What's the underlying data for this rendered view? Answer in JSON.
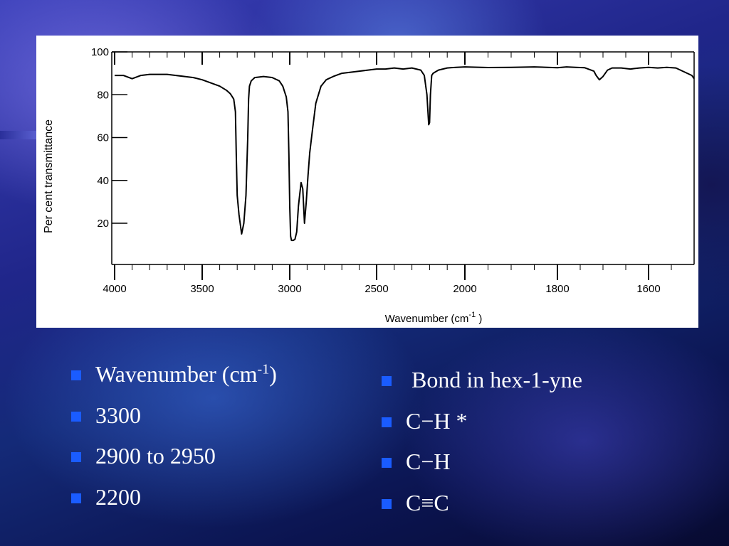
{
  "chart_data": {
    "type": "line",
    "xlabel": "Wavenumber (cm",
    "xlabel_sup": "-1",
    "xlabel_close": " )",
    "ylabel": "Per cent transmittance",
    "x_ticks": [
      4000,
      3500,
      3000,
      2500,
      2000,
      1800,
      1600
    ],
    "x_tick_labels": [
      "4000",
      "3500",
      "3000",
      "2500",
      "2000",
      "1800",
      "1600"
    ],
    "y_ticks": [
      20,
      40,
      60,
      80,
      100
    ],
    "y_tick_labels": [
      "20",
      "40",
      "60",
      "80",
      "100"
    ],
    "ylim": [
      0,
      100
    ],
    "xlim": [
      4000,
      1500
    ],
    "x_scale": "piecewise: 4000-2000 compressed, 2000-1500 expanded",
    "grid": false,
    "series": [
      {
        "x": [
          4000,
          3950,
          3900,
          3850,
          3800,
          3750,
          3700,
          3650,
          3600,
          3550,
          3500,
          3450,
          3400,
          3360,
          3340,
          3320,
          3310,
          3305,
          3300,
          3290,
          3275,
          3262,
          3250,
          3240,
          3235,
          3230,
          3220,
          3200,
          3150,
          3100,
          3060,
          3040,
          3020,
          3010,
          3005,
          3000,
          2995,
          2990,
          2980,
          2970,
          2960,
          2950,
          2935,
          2925,
          2915,
          2905,
          2895,
          2885,
          2870,
          2850,
          2820,
          2790,
          2750,
          2700,
          2650,
          2600,
          2550,
          2500,
          2450,
          2400,
          2350,
          2300,
          2250,
          2230,
          2215,
          2205,
          2200,
          2195,
          2188,
          2180,
          2170,
          2150,
          2100,
          2050,
          2000,
          1950,
          1900,
          1850,
          1800,
          1780,
          1760,
          1740,
          1720,
          1715,
          1708,
          1700,
          1690,
          1680,
          1660,
          1640,
          1620,
          1600,
          1580,
          1560,
          1540,
          1520,
          1505,
          1500
        ],
        "y": [
          89,
          89,
          87.5,
          89,
          89.5,
          89.5,
          89.5,
          89,
          88.5,
          88,
          87,
          85.5,
          84,
          82,
          80.5,
          78,
          72,
          50,
          33,
          24,
          15,
          20,
          33,
          60,
          78,
          84,
          86.5,
          88,
          88.5,
          88,
          86.5,
          84,
          79,
          72,
          52,
          28,
          14,
          12,
          12,
          12.5,
          16,
          28,
          39,
          36,
          20,
          30,
          42,
          53,
          63,
          76,
          84,
          87,
          88.5,
          90,
          90.5,
          91,
          91.5,
          92,
          92,
          92.5,
          92,
          92.5,
          91.5,
          89,
          80,
          66,
          67,
          80,
          89,
          90,
          90.5,
          91.5,
          92.5,
          92.8,
          93,
          92.7,
          92.8,
          93,
          92.6,
          93,
          92.8,
          92.6,
          91,
          89,
          87,
          88.5,
          91.5,
          92.5,
          92.5,
          92,
          92.5,
          92.8,
          92.5,
          92.8,
          92.5,
          90.5,
          89,
          87.5
        ]
      }
    ]
  },
  "bullets_left": [
    {
      "text": "Wavenumber (cm",
      "sup": "-1",
      "after": ")"
    },
    {
      "text": "3300"
    },
    {
      "text": "2900 to 2950"
    },
    {
      "text": "2200"
    }
  ],
  "bullets_right": [
    {
      "text": " Bond in hex-1-yne"
    },
    {
      "text": "C−H *"
    },
    {
      "text": "C−H"
    },
    {
      "text": "C≡C"
    }
  ],
  "colors": {
    "bullet": "#1a5cff",
    "text": "#ffffff",
    "line": "#000000",
    "panel": "#ffffff"
  }
}
